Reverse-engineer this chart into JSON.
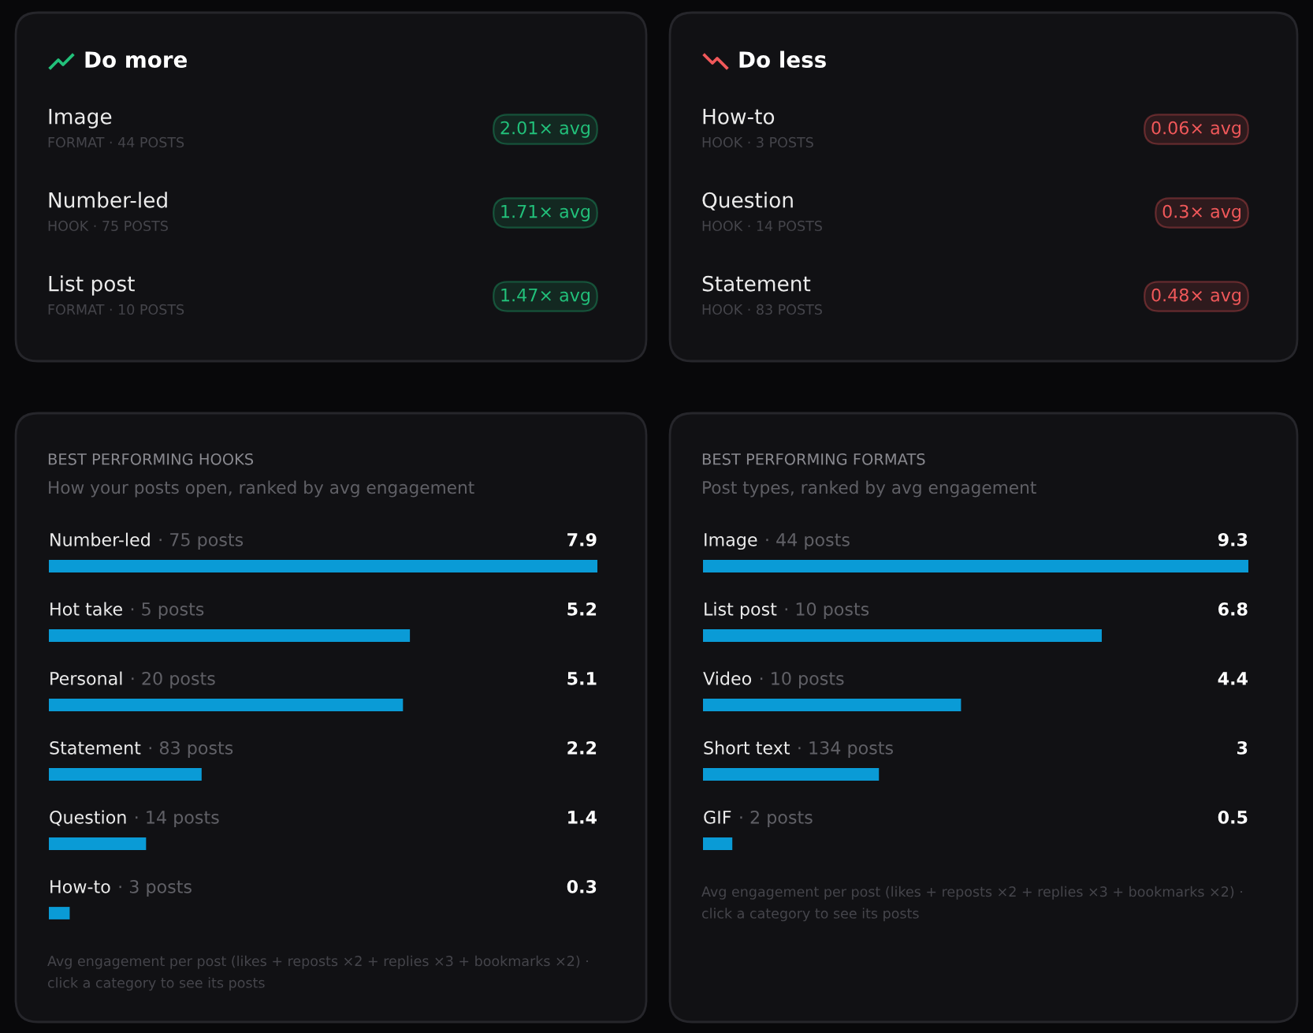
{
  "chart_data": [
    {
      "type": "other",
      "title": "Do more",
      "annotations": [
        "Image",
        "FORMAT · 44 POSTS",
        "2.01× avg",
        "Number-led",
        "HOOK · 75 POSTS",
        "1.71× avg",
        "List post",
        "FORMAT · 10 POSTS",
        "1.47× avg"
      ],
      "color": "#22c07a"
    },
    {
      "type": "other",
      "title": "Do less",
      "annotations": [
        "How-to",
        "HOOK · 3 POSTS",
        "0.06× avg",
        "Question",
        "HOOK · 14 POSTS",
        "0.3× avg",
        "Statement",
        "HOOK · 83 POSTS",
        "0.48× avg"
      ],
      "color": "#f0585a"
    },
    {
      "type": "bar",
      "orientation": "horizontal",
      "title": "BEST PERFORMING HOOKS",
      "subtitle": "How your posts open, ranked by avg engagement",
      "categories": [
        "Number-led · 75 posts",
        "Hot take · 5 posts",
        "Personal · 20 posts",
        "Statement · 83 posts",
        "Question · 14 posts",
        "How-to · 3 posts"
      ],
      "values": [
        7.9,
        5.2,
        5.1,
        2.2,
        1.4,
        0.3
      ],
      "color": "#0a9bd6",
      "xlim": [
        0,
        7.9
      ],
      "data_labels": true,
      "annotations": [
        "Avg engagement per post (likes + reposts ×2 + replies ×3 + bookmarks ×2) ·\nclick a category to see its posts"
      ]
    },
    {
      "type": "bar",
      "orientation": "horizontal",
      "title": "BEST PERFORMING FORMATS",
      "subtitle": "Post types, ranked by avg engagement",
      "categories": [
        "Image · 44 posts",
        "List post · 10 posts",
        "Video · 10 posts",
        "Short text · 134 posts",
        "GIF · 2 posts"
      ],
      "values": [
        9.3,
        6.8,
        4.4,
        3,
        0.5
      ],
      "color": "#0a9bd6",
      "xlim": [
        0,
        9.3
      ],
      "data_labels": true,
      "annotations": [
        "Avg engagement per post (likes + reposts ×2 + replies ×3 + bookmarks ×2) ·\nclick a category to see its posts"
      ]
    }
  ]
}
